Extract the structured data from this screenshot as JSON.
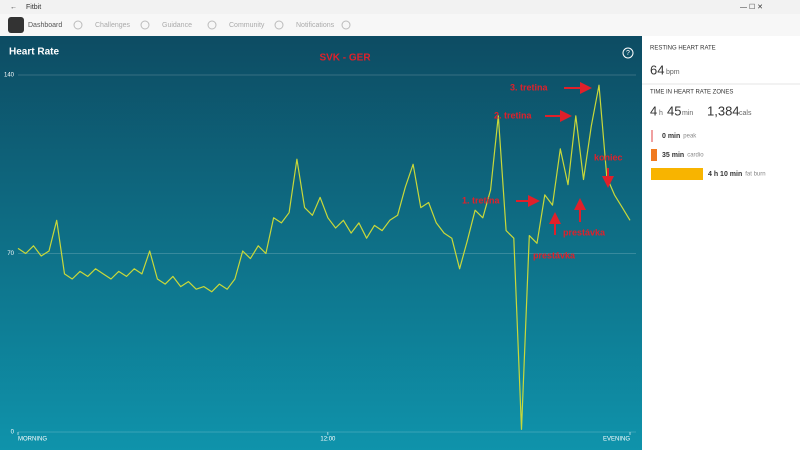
{
  "app": {
    "title": "Fitbit",
    "nav": [
      "Dashboard",
      "Challenges",
      "Guidance",
      "Community",
      "Notifications"
    ]
  },
  "chart_data": {
    "type": "line",
    "title": "Heart Rate",
    "subtitle": "SVK - GER",
    "color": "#c8d83a",
    "values": [
      72,
      70,
      73,
      69,
      71,
      83,
      62,
      60,
      63,
      61,
      64,
      62,
      60,
      63,
      61,
      64,
      62,
      71,
      60,
      58,
      61,
      57,
      59,
      56,
      57,
      55,
      58,
      56,
      60,
      71,
      68,
      73,
      70,
      84,
      82,
      86,
      107,
      88,
      85,
      92,
      84,
      80,
      83,
      78,
      82,
      76,
      81,
      79,
      83,
      85,
      96,
      105,
      88,
      90,
      82,
      78,
      76,
      64,
      75,
      87,
      84,
      95,
      124,
      79,
      76,
      1,
      77,
      74,
      93,
      89,
      111,
      97,
      124,
      99,
      120,
      136,
      100,
      93,
      88,
      83
    ],
    "xlim": [
      0,
      79
    ],
    "xticks": [
      {
        "value": 0,
        "label": "MORNING"
      },
      {
        "value": 40,
        "label": "12:00"
      },
      {
        "value": 79,
        "label": "EVENING"
      }
    ],
    "ylim": [
      0,
      140
    ],
    "yticks": [
      0,
      70,
      140
    ],
    "grid": true,
    "annotations": [
      "3. tretina",
      "2. tretina",
      "1. tretina",
      "prestávka",
      "prestávka",
      "koniec"
    ]
  },
  "side_panel": {
    "resting_title": "RESTING HEART RATE",
    "resting_value": 64,
    "resting_unit": "bpm",
    "zones_title": "TIME IN HEART RATE ZONES",
    "hours": 4,
    "hours_unit": "h",
    "minutes": 45,
    "minutes_unit": "min",
    "cals": "1,384",
    "cals_unit": "cals",
    "zones": [
      {
        "time": "0 min",
        "name": "peak"
      },
      {
        "time": "35 min",
        "name": "cardio"
      },
      {
        "time": "4 h 10 min",
        "name": "fat burn"
      }
    ]
  }
}
